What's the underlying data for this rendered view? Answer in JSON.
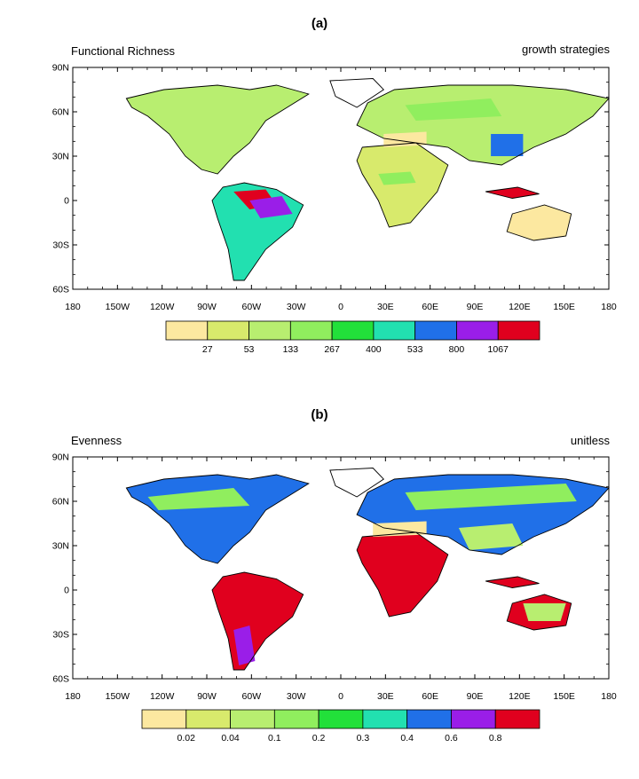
{
  "panels": [
    {
      "id": "a",
      "title": "(a)",
      "left_label": "Functional Richness",
      "right_label": "growth strategies",
      "lat_labels": [
        "90N",
        "60N",
        "30N",
        "0",
        "30S",
        "60S"
      ],
      "lon_labels": [
        "180",
        "150W",
        "120W",
        "90W",
        "60W",
        "30W",
        "0",
        "30E",
        "60E",
        "90E",
        "120E",
        "150E",
        "180"
      ],
      "colorbar": {
        "colors": [
          "#fce8a0",
          "#d8ea6c",
          "#b8ee70",
          "#90ee5e",
          "#22e03a",
          "#22e0b0",
          "#2070e8",
          "#9a1ee8",
          "#e0001e"
        ],
        "labels": [
          "27",
          "53",
          "133",
          "267",
          "400",
          "533",
          "800",
          "1067"
        ]
      }
    },
    {
      "id": "b",
      "title": "(b)",
      "left_label": "Evenness",
      "right_label": "unitless",
      "lat_labels": [
        "90N",
        "60N",
        "30N",
        "0",
        "30S",
        "60S"
      ],
      "lon_labels": [
        "180",
        "150W",
        "120W",
        "90W",
        "60W",
        "30W",
        "0",
        "30E",
        "60E",
        "90E",
        "120E",
        "150E",
        "180"
      ],
      "colorbar": {
        "colors": [
          "#fce8a0",
          "#d8ea6c",
          "#b8ee70",
          "#90ee5e",
          "#22e03a",
          "#22e0b0",
          "#2070e8",
          "#9a1ee8",
          "#e0001e"
        ],
        "labels": [
          "0.02",
          "0.04",
          "0.1",
          "0.2",
          "0.3",
          "0.4",
          "0.6",
          "0.8"
        ]
      }
    }
  ]
}
